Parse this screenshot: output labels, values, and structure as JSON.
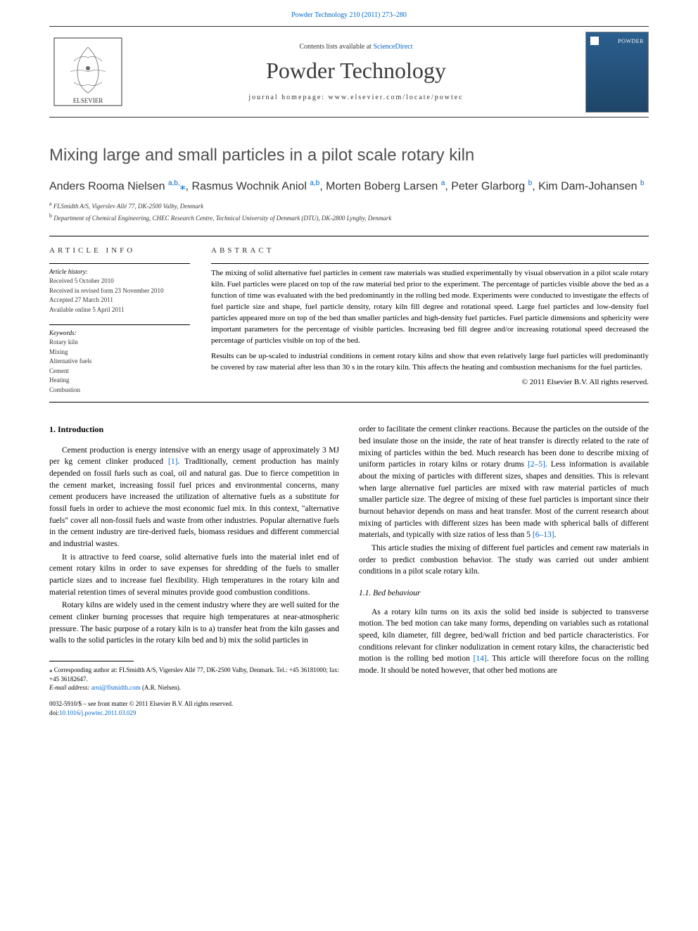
{
  "header": {
    "page_ref": "Powder Technology 210 (2011) 273–280",
    "contents_prefix": "Contents lists available at ",
    "contents_link": "ScienceDirect",
    "journal_name": "Powder Technology",
    "homepage_label": "journal homepage: ",
    "homepage_url": "www.elsevier.com/locate/powtec",
    "cover_label": "POWDER",
    "elsevier_label": "ELSEVIER"
  },
  "article": {
    "title": "Mixing large and small particles in a pilot scale rotary kiln",
    "authors_html": "Anders Rooma Nielsen <sup>a,b,</sup><span class='star'>⁎</span>, Rasmus Wochnik Aniol <sup>a,b</sup>, Morten Boberg Larsen <sup>a</sup>, Peter Glarborg <sup>b</sup>, Kim Dam-Johansen <sup>b</sup>",
    "affiliations": [
      {
        "sup": "a",
        "text": "FLSmidth A/S, Vigerslev Allé 77, DK-2500 Valby, Denmark"
      },
      {
        "sup": "b",
        "text": "Department of Chemical Engineering, CHEC Research Centre, Technical University of Denmark (DTU), DK-2800 Lyngby, Denmark"
      }
    ]
  },
  "info": {
    "heading": "ARTICLE INFO",
    "history_label": "Article history:",
    "history": [
      "Received 5 October 2010",
      "Received in revised form 23 November 2010",
      "Accepted 27 March 2011",
      "Available online 5 April 2011"
    ],
    "keywords_label": "Keywords:",
    "keywords": [
      "Rotary kiln",
      "Mixing",
      "Alternative fuels",
      "Cement",
      "Heating",
      "Combustion"
    ]
  },
  "abstract": {
    "heading": "ABSTRACT",
    "paragraphs": [
      "The mixing of solid alternative fuel particles in cement raw materials was studied experimentally by visual observation in a pilot scale rotary kiln. Fuel particles were placed on top of the raw material bed prior to the experiment. The percentage of particles visible above the bed as a function of time was evaluated with the bed predominantly in the rolling bed mode. Experiments were conducted to investigate the effects of fuel particle size and shape, fuel particle density, rotary kiln fill degree and rotational speed. Large fuel particles and low-density fuel particles appeared more on top of the bed than smaller particles and high-density fuel particles. Fuel particle dimensions and sphericity were important parameters for the percentage of visible particles. Increasing bed fill degree and/or increasing rotational speed decreased the percentage of particles visible on top of the bed.",
      "Results can be up-scaled to industrial conditions in cement rotary kilns and show that even relatively large fuel particles will predominantly be covered by raw material after less than 30 s in the rotary kiln. This affects the heating and combustion mechanisms for the fuel particles."
    ],
    "copyright": "© 2011 Elsevier B.V. All rights reserved."
  },
  "body": {
    "section_1_heading": "1. Introduction",
    "section_1_paragraphs": [
      "Cement production is energy intensive with an energy usage of approximately 3 MJ per kg cement clinker produced <span class='ref-link'>[1]</span>. Traditionally, cement production has mainly depended on fossil fuels such as coal, oil and natural gas. Due to fierce competition in the cement market, increasing fossil fuel prices and environmental concerns, many cement producers have increased the utilization of alternative fuels as a substitute for fossil fuels in order to achieve the most economic fuel mix. In this context, \"alternative fuels\" cover all non-fossil fuels and waste from other industries. Popular alternative fuels in the cement industry are tire-derived fuels, biomass residues and different commercial and industrial wastes.",
      "It is attractive to feed coarse, solid alternative fuels into the material inlet end of cement rotary kilns in order to save expenses for shredding of the fuels to smaller particle sizes and to increase fuel flexibility. High temperatures in the rotary kiln and material retention times of several minutes provide good combustion conditions.",
      "Rotary kilns are widely used in the cement industry where they are well suited for the cement clinker burning processes that require high temperatures at near-atmospheric pressure. The basic purpose of a rotary kiln is to a) transfer heat from the kiln gasses and walls to the solid particles in the rotary kiln bed and b) mix the solid particles in"
    ],
    "col2_paragraphs": [
      "order to facilitate the cement clinker reactions. Because the particles on the outside of the bed insulate those on the inside, the rate of heat transfer is directly related to the rate of mixing of particles within the bed. Much research has been done to describe mixing of uniform particles in rotary kilns or rotary drums <span class='ref-link'>[2–5]</span>. Less information is available about the mixing of particles with different sizes, shapes and densities. This is relevant when large alternative fuel particles are mixed with raw material particles of much smaller particle size. The degree of mixing of these fuel particles is important since their burnout behavior depends on mass and heat transfer. Most of the current research about mixing of particles with different sizes has been made with spherical balls of different materials, and typically with size ratios of less than 5 <span class='ref-link'>[6–13]</span>.",
      "This article studies the mixing of different fuel particles and cement raw materials in order to predict combustion behavior. The study was carried out under ambient conditions in a pilot scale rotary kiln."
    ],
    "subsection_1_1_heading": "1.1. Bed behaviour",
    "subsection_1_1_paragraphs": [
      "As a rotary kiln turns on its axis the solid bed inside is subjected to transverse motion. The bed motion can take many forms, depending on variables such as rotational speed, kiln diameter, fill degree, bed/wall friction and bed particle characteristics. For conditions relevant for clinker nodulization in cement rotary kilns, the characteristic bed motion is the rolling bed motion <span class='ref-link'>[14]</span>. This article will therefore focus on the rolling mode. It should be noted however, that other bed motions are"
    ]
  },
  "footnote": {
    "corresponding": "⁎ Corresponding author at: FLSmidth A/S, Vigerslev Allé 77, DK-2500 Valby, Denmark. Tel.: +45 36181000; fax: +45 36182647.",
    "email_label": "E-mail address: ",
    "email": "arni@flsmidth.com",
    "email_person": " (A.R. Nielsen)."
  },
  "doi": {
    "front_matter": "0032-5910/$ – see front matter © 2011 Elsevier B.V. All rights reserved.",
    "doi_label": "doi:",
    "doi": "10.1016/j.powtec.2011.03.029"
  },
  "colors": {
    "link": "#0066cc",
    "text": "#000000",
    "heading_gray": "#505050",
    "cover_bg_top": "#2b5f8f",
    "cover_bg_bottom": "#1e4568"
  },
  "fonts": {
    "journal_name_size": 32,
    "article_title_size": 24,
    "body_size": 11.5,
    "abstract_size": 11,
    "info_size": 9
  }
}
